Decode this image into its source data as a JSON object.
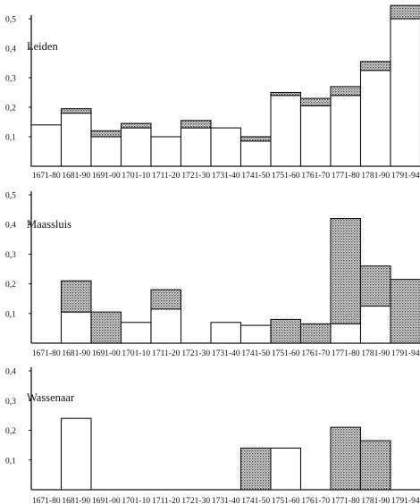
{
  "chart_data": [
    {
      "type": "bar",
      "title": "Leiden",
      "ylim": [
        0,
        0.5
      ],
      "yticks": [
        "0,1",
        "0,2",
        "0,3",
        "0,4",
        "0,5"
      ],
      "categories": [
        "1671-80",
        "1681-90",
        "1691-00",
        "1701-10",
        "1711-20",
        "1721-30",
        "1731-40",
        "1741-50",
        "1751-60",
        "1761-70",
        "1771-80",
        "1781-90",
        "1791-94"
      ],
      "series": [
        {
          "values": [
            0.14,
            0.18,
            0.1,
            0.13,
            0.1,
            0.13,
            0.13,
            0.085,
            0.24,
            0.205,
            0.24,
            0.325,
            0.5
          ]
        },
        {
          "values": [
            0,
            0.015,
            0.02,
            0.015,
            0,
            0.025,
            0,
            0.015,
            0.01,
            0.025,
            0.03,
            0.03,
            0.045
          ]
        }
      ]
    },
    {
      "type": "bar",
      "title": "Maassluis",
      "ylim": [
        0,
        0.5
      ],
      "yticks": [
        "0,1",
        "0,2",
        "0,3",
        "0,4",
        "0,5"
      ],
      "categories": [
        "1671-80",
        "1681-90",
        "1691-00",
        "1701-10",
        "1711-20",
        "1721-30",
        "1731-40",
        "1741-50",
        "1751-60",
        "1761-70",
        "1771-80",
        "1781-90",
        "1791-94"
      ],
      "series": [
        {
          "values": [
            0,
            0.105,
            0,
            0.07,
            0.115,
            0,
            0.07,
            0.06,
            0,
            0,
            0.065,
            0.125,
            0
          ]
        },
        {
          "values": [
            0,
            0.105,
            0.105,
            0,
            0.065,
            0,
            0,
            0,
            0.08,
            0.065,
            0.355,
            0.135,
            0.215
          ]
        }
      ]
    },
    {
      "type": "bar",
      "title": "Wassenaar",
      "ylim": [
        0,
        0.4
      ],
      "yticks": [
        "0,1",
        "0,2",
        "0,3",
        "0,4"
      ],
      "categories": [
        "1671-80",
        "1681-90",
        "1691-00",
        "1701-10",
        "1711-20",
        "1721-30",
        "1731-40",
        "1741-50",
        "1751-60",
        "1761-70",
        "1771-80",
        "1781-90",
        "1791-94"
      ],
      "series": [
        {
          "values": [
            0,
            0.24,
            0,
            0,
            0,
            0,
            0,
            0,
            0.14,
            0,
            0,
            0,
            0
          ]
        },
        {
          "values": [
            0,
            0,
            0,
            0,
            0,
            0,
            0,
            0.14,
            0,
            0,
            0.21,
            0.165,
            0
          ]
        }
      ]
    }
  ]
}
